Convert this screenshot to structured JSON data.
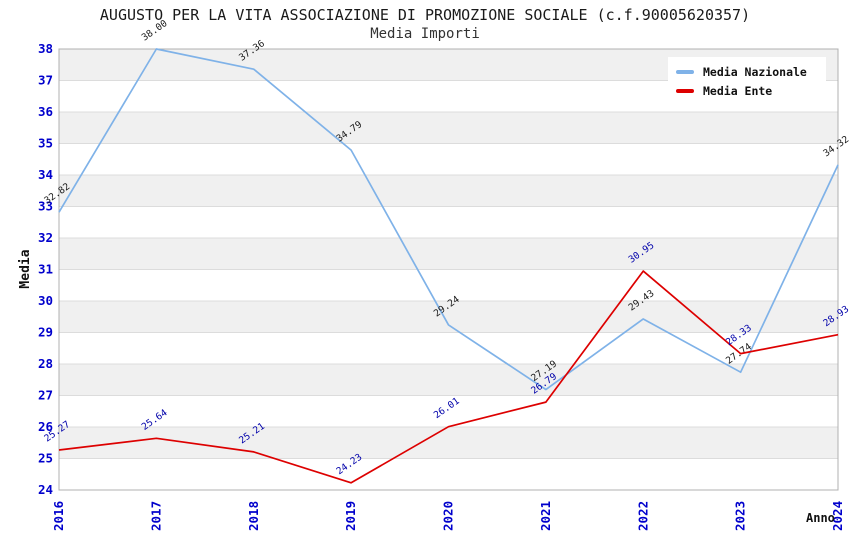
{
  "title": "AUGUSTO PER LA VITA ASSOCIAZIONE DI PROMOZIONE SOCIALE (c.f.90005620357)",
  "subtitle": "Media Importi",
  "chart_data": {
    "type": "line",
    "x": [
      "2016",
      "2017",
      "2018",
      "2019",
      "2020",
      "2021",
      "2022",
      "2023",
      "2024"
    ],
    "series": [
      {
        "name": "Media Nazionale",
        "color": "#7fb2e8",
        "label_color": "#1a1a1a",
        "values": [
          32.82,
          38.0,
          37.36,
          34.79,
          29.24,
          27.19,
          29.43,
          27.74,
          34.32
        ]
      },
      {
        "name": "Media Ente",
        "color": "#dd0000",
        "label_color": "#0000aa",
        "values": [
          25.27,
          25.64,
          25.21,
          24.23,
          26.01,
          26.79,
          30.95,
          28.33,
          28.93
        ]
      }
    ],
    "xlabel": "Anno",
    "ylabel": "Media",
    "ylim": [
      24,
      38
    ],
    "y_tick_step": 1,
    "grid": "alternating horizontal bands",
    "legend_position": "top-right",
    "colors": {
      "tick_label": "#0000cc",
      "band": "#f0f0f0",
      "gridline": "#dcdcdc",
      "plot_border": "#b0b0b0"
    }
  }
}
